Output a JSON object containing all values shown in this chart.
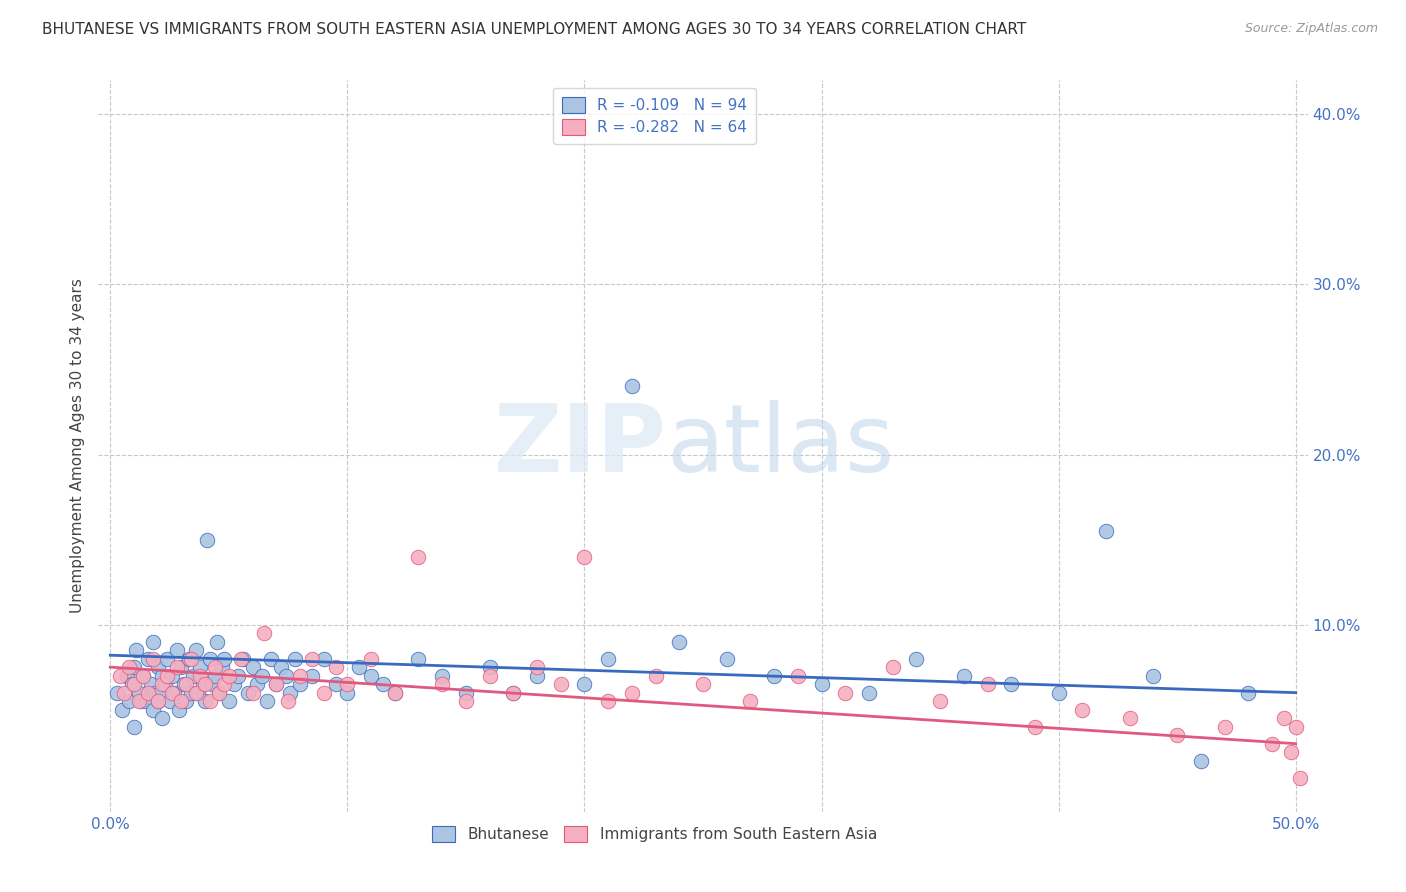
{
  "title": "BHUTANESE VS IMMIGRANTS FROM SOUTH EASTERN ASIA UNEMPLOYMENT AMONG AGES 30 TO 34 YEARS CORRELATION CHART",
  "source": "Source: ZipAtlas.com",
  "ylabel": "Unemployment Among Ages 30 to 34 years",
  "xlim": [
    -0.005,
    0.505
  ],
  "ylim": [
    -0.01,
    0.42
  ],
  "blue_R": -0.109,
  "blue_N": 94,
  "pink_R": -0.282,
  "pink_N": 64,
  "blue_color": "#aac4e2",
  "pink_color": "#f5afc0",
  "blue_line_color": "#3a6abf",
  "pink_line_color": "#e05a80",
  "legend_label_blue": "Bhutanese",
  "legend_label_pink": "Immigrants from South Eastern Asia",
  "blue_x": [
    0.003,
    0.005,
    0.007,
    0.008,
    0.009,
    0.01,
    0.01,
    0.011,
    0.012,
    0.013,
    0.014,
    0.015,
    0.016,
    0.017,
    0.018,
    0.018,
    0.019,
    0.02,
    0.02,
    0.021,
    0.022,
    0.022,
    0.023,
    0.024,
    0.025,
    0.026,
    0.027,
    0.028,
    0.029,
    0.03,
    0.031,
    0.032,
    0.033,
    0.034,
    0.035,
    0.036,
    0.037,
    0.038,
    0.039,
    0.04,
    0.041,
    0.042,
    0.043,
    0.044,
    0.045,
    0.046,
    0.047,
    0.048,
    0.05,
    0.052,
    0.054,
    0.056,
    0.058,
    0.06,
    0.062,
    0.064,
    0.066,
    0.068,
    0.07,
    0.072,
    0.074,
    0.076,
    0.078,
    0.08,
    0.085,
    0.09,
    0.095,
    0.1,
    0.105,
    0.11,
    0.115,
    0.12,
    0.13,
    0.14,
    0.15,
    0.16,
    0.17,
    0.18,
    0.2,
    0.21,
    0.22,
    0.24,
    0.26,
    0.28,
    0.3,
    0.32,
    0.34,
    0.36,
    0.38,
    0.4,
    0.42,
    0.44,
    0.46,
    0.48
  ],
  "blue_y": [
    0.06,
    0.05,
    0.07,
    0.055,
    0.065,
    0.04,
    0.075,
    0.085,
    0.06,
    0.055,
    0.07,
    0.055,
    0.08,
    0.065,
    0.05,
    0.09,
    0.06,
    0.075,
    0.055,
    0.06,
    0.07,
    0.045,
    0.065,
    0.08,
    0.055,
    0.07,
    0.06,
    0.085,
    0.05,
    0.075,
    0.065,
    0.055,
    0.08,
    0.06,
    0.07,
    0.085,
    0.06,
    0.075,
    0.065,
    0.055,
    0.15,
    0.08,
    0.065,
    0.07,
    0.09,
    0.06,
    0.075,
    0.08,
    0.055,
    0.065,
    0.07,
    0.08,
    0.06,
    0.075,
    0.065,
    0.07,
    0.055,
    0.08,
    0.065,
    0.075,
    0.07,
    0.06,
    0.08,
    0.065,
    0.07,
    0.08,
    0.065,
    0.06,
    0.075,
    0.07,
    0.065,
    0.06,
    0.08,
    0.07,
    0.06,
    0.075,
    0.06,
    0.07,
    0.065,
    0.08,
    0.24,
    0.09,
    0.08,
    0.07,
    0.065,
    0.06,
    0.08,
    0.07,
    0.065,
    0.06,
    0.155,
    0.07,
    0.02,
    0.06
  ],
  "pink_x": [
    0.004,
    0.006,
    0.008,
    0.01,
    0.012,
    0.014,
    0.016,
    0.018,
    0.02,
    0.022,
    0.024,
    0.026,
    0.028,
    0.03,
    0.032,
    0.034,
    0.036,
    0.038,
    0.04,
    0.042,
    0.044,
    0.046,
    0.048,
    0.05,
    0.055,
    0.06,
    0.065,
    0.07,
    0.075,
    0.08,
    0.085,
    0.09,
    0.095,
    0.1,
    0.11,
    0.12,
    0.13,
    0.14,
    0.15,
    0.16,
    0.17,
    0.18,
    0.19,
    0.2,
    0.21,
    0.22,
    0.23,
    0.25,
    0.27,
    0.29,
    0.31,
    0.33,
    0.35,
    0.37,
    0.39,
    0.41,
    0.43,
    0.45,
    0.47,
    0.49,
    0.495,
    0.498,
    0.5,
    0.502
  ],
  "pink_y": [
    0.07,
    0.06,
    0.075,
    0.065,
    0.055,
    0.07,
    0.06,
    0.08,
    0.055,
    0.065,
    0.07,
    0.06,
    0.075,
    0.055,
    0.065,
    0.08,
    0.06,
    0.07,
    0.065,
    0.055,
    0.075,
    0.06,
    0.065,
    0.07,
    0.08,
    0.06,
    0.095,
    0.065,
    0.055,
    0.07,
    0.08,
    0.06,
    0.075,
    0.065,
    0.08,
    0.06,
    0.14,
    0.065,
    0.055,
    0.07,
    0.06,
    0.075,
    0.065,
    0.14,
    0.055,
    0.06,
    0.07,
    0.065,
    0.055,
    0.07,
    0.06,
    0.075,
    0.055,
    0.065,
    0.04,
    0.05,
    0.045,
    0.035,
    0.04,
    0.03,
    0.045,
    0.025,
    0.04,
    0.01
  ],
  "blue_line_x": [
    0.0,
    0.5
  ],
  "blue_line_y": [
    0.082,
    0.06
  ],
  "pink_line_x": [
    0.0,
    0.5
  ],
  "pink_line_y": [
    0.075,
    0.03
  ],
  "watermark_zip": "ZIP",
  "watermark_atlas": "atlas",
  "grid_color": "#c8c8c8",
  "bg_color": "#ffffff",
  "title_fontsize": 11,
  "axis_label_fontsize": 11,
  "tick_fontsize": 11,
  "legend_fontsize": 11,
  "source_fontsize": 9
}
